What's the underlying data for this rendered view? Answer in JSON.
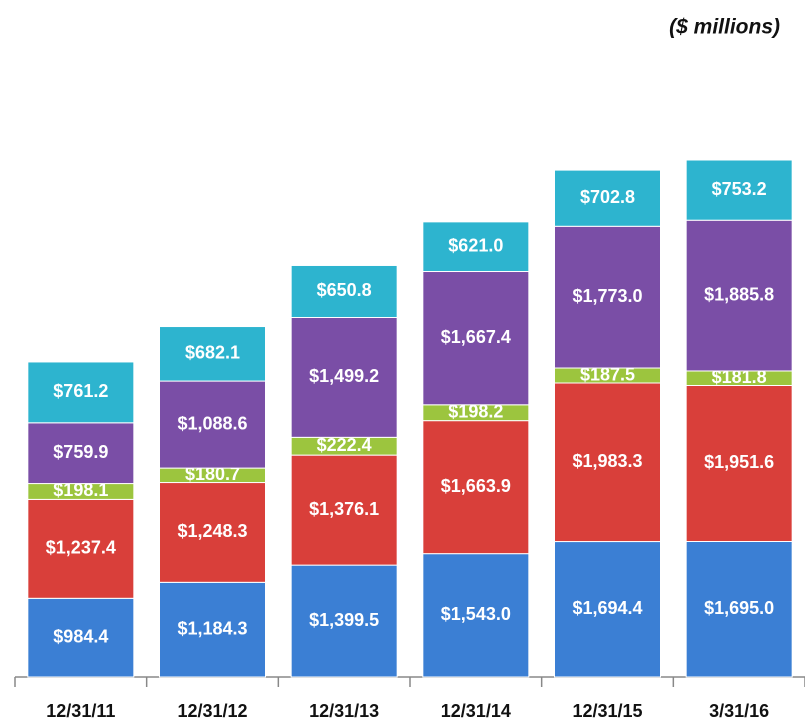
{
  "chart_data": {
    "type": "stacked_bar",
    "subtitle": "($ millions)",
    "categories": [
      "12/31/11",
      "12/31/12",
      "12/31/13",
      "12/31/14",
      "12/31/15",
      "3/31/16"
    ],
    "series": [
      {
        "color": "#3b7fd4",
        "values": [
          984.4,
          1184.3,
          1399.5,
          1543.0,
          1694.4,
          1695.0
        ],
        "value_labels": [
          "$984.4",
          "$1,184.3",
          "$1,399.5",
          "$1,543.0",
          "$1,694.4",
          "$1,695.0"
        ]
      },
      {
        "color": "#d93f3a",
        "values": [
          1237.4,
          1248.3,
          1376.1,
          1663.9,
          1983.3,
          1951.6
        ],
        "value_labels": [
          "$1,237.4",
          "$1,248.3",
          "$1,376.1",
          "$1,663.9",
          "$1,983.3",
          "$1,951.6"
        ]
      },
      {
        "color": "#9cc53e",
        "values": [
          198.1,
          180.7,
          222.4,
          198.2,
          187.5,
          181.8
        ],
        "value_labels": [
          "$198.1",
          "$180.7",
          "$222.4",
          "$198.2",
          "$187.5",
          "$181.8"
        ]
      },
      {
        "color": "#7a4ea6",
        "values": [
          759.9,
          1088.6,
          1499.2,
          1667.4,
          1773.0,
          1885.8
        ],
        "value_labels": [
          "$759.9",
          "$1,088.6",
          "$1,499.2",
          "$1,667.4",
          "$1,773.0",
          "$1,885.8"
        ]
      },
      {
        "color": "#2db4cf",
        "values": [
          761.2,
          682.1,
          650.8,
          621.0,
          702.8,
          753.2
        ],
        "value_labels": [
          "$761.2",
          "$682.1",
          "$650.8",
          "$621.0",
          "$702.8",
          "$753.2"
        ]
      }
    ]
  }
}
